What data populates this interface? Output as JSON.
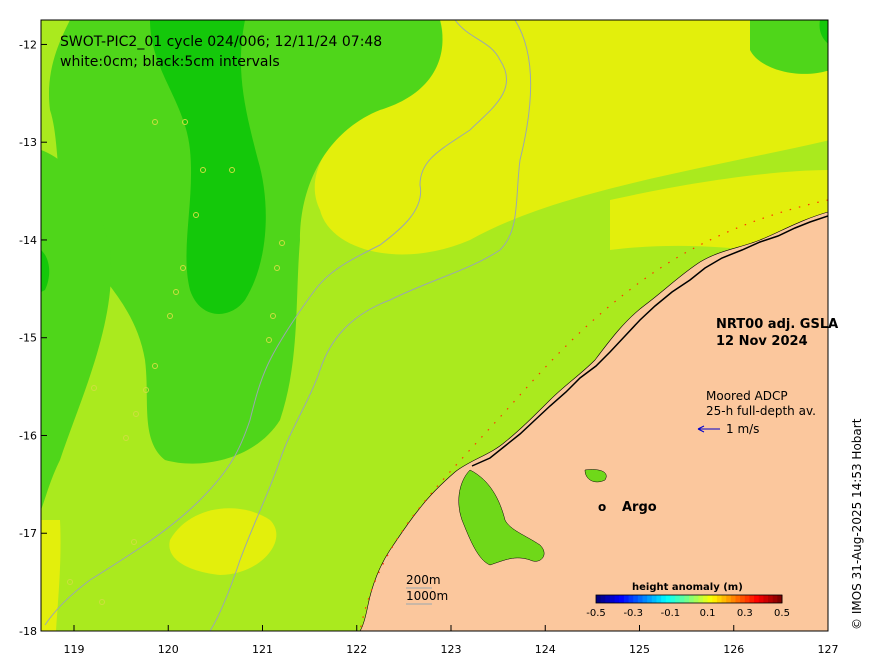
{
  "title": {
    "line1": "SWOT-PIC2_01 cycle 024/006; 12/11/24 07:48",
    "line2": "white:0cm; black:5cm intervals"
  },
  "product": {
    "name": "NRT00 adj. GSLA",
    "date": "12 Nov 2024"
  },
  "adcp": {
    "line1": "Moored ADCP",
    "line2": "25-h full-depth av.",
    "scale": "1 m/s"
  },
  "argo": {
    "marker": "o",
    "label": "Argo",
    "color": "#ff00ff",
    "lon": 124.6,
    "lat": -16.72
  },
  "isobaths": [
    "200m",
    "1000m"
  ],
  "credit": "© IMOS 31-Aug-2025 14:53 Hobart",
  "axes": {
    "x_ticks": [
      "119",
      "120",
      "121",
      "122",
      "123",
      "124",
      "125",
      "126",
      "127"
    ],
    "y_ticks": [
      "-12",
      "-13",
      "-14",
      "-15",
      "-16",
      "-17",
      "-18"
    ],
    "lon_range": [
      118.65,
      127
    ],
    "lat_range": [
      -18,
      -11.75
    ]
  },
  "colorbar": {
    "title": "height anomaly (m)",
    "ticks": [
      "-0.5",
      "-0.3",
      "-0.1",
      "0.1",
      "0.3",
      "0.5"
    ],
    "range": [
      -0.5,
      0.5
    ],
    "colors": [
      "#00007f",
      "#0000ff",
      "#007fff",
      "#00ffff",
      "#7fff7f",
      "#ffff00",
      "#ff7f00",
      "#ff0000",
      "#7f0000"
    ]
  },
  "colors": {
    "land": "#fbc79d",
    "sea_base": "#aaea1e",
    "sea_dark": "#14c80a",
    "sea_mid": "#4fd61a",
    "sea_yellow": "#e3ef0c"
  }
}
